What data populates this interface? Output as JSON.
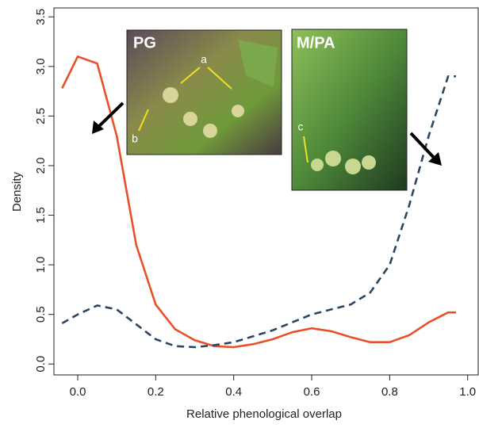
{
  "chart_data": {
    "type": "line",
    "x_label": "Relative phenological overlap",
    "y_label": "Density",
    "x": [
      -0.04,
      0.0,
      0.05,
      0.1,
      0.15,
      0.2,
      0.25,
      0.3,
      0.35,
      0.4,
      0.45,
      0.5,
      0.55,
      0.6,
      0.65,
      0.7,
      0.75,
      0.8,
      0.85,
      0.9,
      0.95,
      0.97
    ],
    "series": [
      {
        "color": "#e8502a",
        "dash": false,
        "values": [
          2.78,
          3.1,
          3.03,
          2.3,
          1.2,
          0.6,
          0.35,
          0.24,
          0.18,
          0.17,
          0.2,
          0.25,
          0.32,
          0.36,
          0.33,
          0.27,
          0.22,
          0.22,
          0.29,
          0.42,
          0.52,
          0.52
        ]
      },
      {
        "color": "#2b4560",
        "dash": true,
        "values": [
          0.41,
          0.5,
          0.59,
          0.55,
          0.4,
          0.25,
          0.18,
          0.17,
          0.19,
          0.22,
          0.28,
          0.34,
          0.42,
          0.5,
          0.55,
          0.6,
          0.72,
          1.0,
          1.6,
          2.3,
          2.9,
          2.9
        ]
      }
    ],
    "xlim": [
      -0.061,
      1.027
    ],
    "ylim": [
      -0.11,
      3.59
    ],
    "xticks": [
      {
        "value": 0,
        "label": "0.0"
      },
      0.2,
      0.4,
      0.6,
      0.8,
      {
        "value": 1,
        "label": "1.0"
      }
    ],
    "yticks": [
      {
        "value": 0,
        "label": "0.0"
      },
      0.5,
      {
        "value": 1,
        "label": "1.0"
      },
      1.5,
      {
        "value": 2,
        "label": "2.0"
      },
      2.5,
      {
        "value": 3,
        "label": "3.0"
      },
      3.5
    ],
    "insets": [
      {
        "title": "PG",
        "labels": [
          "a",
          "b"
        ]
      },
      {
        "title": "M/PA",
        "labels": [
          "c"
        ]
      }
    ]
  }
}
